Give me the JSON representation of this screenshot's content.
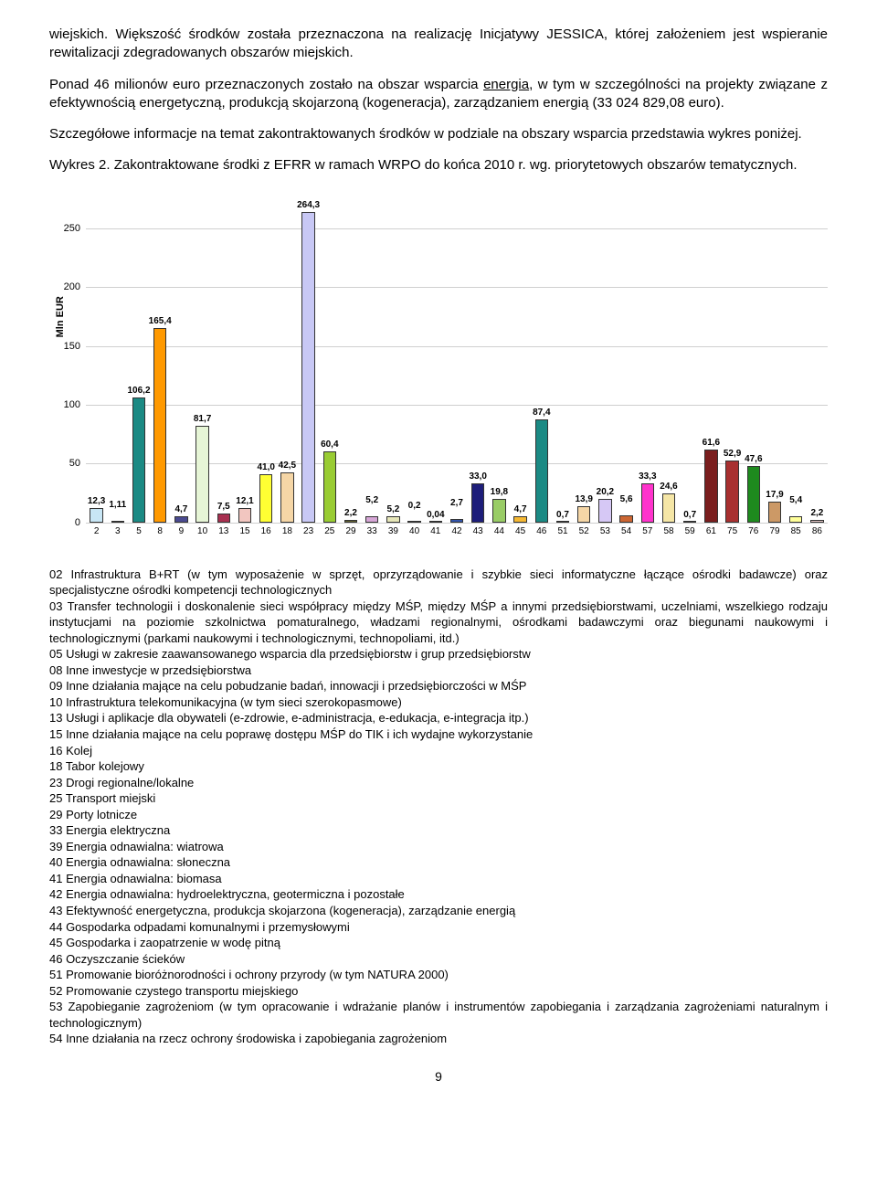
{
  "paragraphs": {
    "p1": "wiejskich. Większość środków została przeznaczona na realizację Inicjatywy JESSICA, której założeniem jest wspieranie rewitalizacji zdegradowanych obszarów miejskich.",
    "p2_a": "Ponad 46 milionów euro przeznaczonych zostało na obszar wsparcia ",
    "p2_energia": "energia",
    "p2_b": ", w tym w szczególności na projekty związane z efektywnością energetyczną, produkcją skojarzoną (kogeneracja), zarządzaniem energią (33 024 829,08 euro).",
    "p3": "Szczegółowe informacje na temat zakontraktowanych środków w podziale na obszary wsparcia przedstawia wykres poniżej.",
    "p4": "Wykres 2. Zakontraktowane środki z EFRR w ramach WRPO do końca 2010 r. wg. priorytetowych obszarów tematycznych."
  },
  "chart": {
    "type": "bar",
    "ylabel": "Mln EUR",
    "ymax": 280,
    "yticks": [
      0,
      50,
      100,
      150,
      200,
      250
    ],
    "grid_color": "#cfcfcf",
    "background_color": "#ffffff",
    "label_fontsize": 10,
    "bars": [
      {
        "cat": "2",
        "val": 12.3,
        "label": "12,3",
        "color": "#c8e6f5"
      },
      {
        "cat": "3",
        "val": 1.11,
        "label": "1,11",
        "color": "#ffffff"
      },
      {
        "cat": "5",
        "val": 106.2,
        "label": "106,2",
        "color": "#1b8a84"
      },
      {
        "cat": "8",
        "val": 165.4,
        "label": "165,4",
        "color": "#ff9900"
      },
      {
        "cat": "9",
        "val": 4.7,
        "label": "4,7",
        "color": "#4a4a90"
      },
      {
        "cat": "10",
        "val": 81.7,
        "label": "81,7",
        "color": "#e6f5d6"
      },
      {
        "cat": "13",
        "val": 7.5,
        "label": "7,5",
        "color": "#a83050"
      },
      {
        "cat": "15",
        "val": 12.1,
        "label": "12,1",
        "color": "#f2c6c0"
      },
      {
        "cat": "16",
        "val": 41.0,
        "label": "41,0",
        "color": "#ffff33"
      },
      {
        "cat": "18",
        "val": 42.5,
        "label": "42,5",
        "color": "#f5d6a6"
      },
      {
        "cat": "23",
        "val": 264.3,
        "label": "264,3",
        "color": "#c8c8f5"
      },
      {
        "cat": "25",
        "val": 60.4,
        "label": "60,4",
        "color": "#99cc33"
      },
      {
        "cat": "29",
        "val": 2.2,
        "label": "2,2",
        "color": "#666633"
      },
      {
        "cat": "33",
        "val": 5.2,
        "label": "5,2",
        "color": "#d6a6d6"
      },
      {
        "cat": "39",
        "val": 5.2,
        "label": "5,2",
        "color": "#e6e6b8"
      },
      {
        "cat": "40",
        "val": 0.2,
        "label": "0,2",
        "color": "#b8a6e6"
      },
      {
        "cat": "41",
        "val": 0.04,
        "label": "0,04",
        "color": "#ffcc99"
      },
      {
        "cat": "42",
        "val": 2.7,
        "label": "2,7",
        "color": "#3355aa"
      },
      {
        "cat": "43",
        "val": 33.0,
        "label": "33,0",
        "color": "#1e1e7a"
      },
      {
        "cat": "44",
        "val": 19.8,
        "label": "19,8",
        "color": "#99cc66"
      },
      {
        "cat": "45",
        "val": 4.7,
        "label": "4,7",
        "color": "#f5b833"
      },
      {
        "cat": "46",
        "val": 87.4,
        "label": "87,4",
        "color": "#1b8a84"
      },
      {
        "cat": "51",
        "val": 0.7,
        "label": "0,7",
        "color": "#663399"
      },
      {
        "cat": "52",
        "val": 13.9,
        "label": "13,9",
        "color": "#f5d6a6"
      },
      {
        "cat": "53",
        "val": 20.2,
        "label": "20,2",
        "color": "#d6c8f5"
      },
      {
        "cat": "54",
        "val": 5.6,
        "label": "5,6",
        "color": "#cc6633"
      },
      {
        "cat": "57",
        "val": 33.3,
        "label": "33,3",
        "color": "#ff33cc"
      },
      {
        "cat": "58",
        "val": 24.6,
        "label": "24,6",
        "color": "#f5e6a6"
      },
      {
        "cat": "59",
        "val": 0.7,
        "label": "0,7",
        "color": "#1b8a84"
      },
      {
        "cat": "61",
        "val": 61.6,
        "label": "61,6",
        "color": "#7a1e1e"
      },
      {
        "cat": "75",
        "val": 52.9,
        "label": "52,9",
        "color": "#a83030"
      },
      {
        "cat": "76",
        "val": 47.6,
        "label": "47,6",
        "color": "#1e8a1e"
      },
      {
        "cat": "79",
        "val": 17.9,
        "label": "17,9",
        "color": "#cc9966"
      },
      {
        "cat": "85",
        "val": 5.4,
        "label": "5,4",
        "color": "#ffff99"
      },
      {
        "cat": "86",
        "val": 2.2,
        "label": "2,2",
        "color": "#e6c8c8"
      }
    ]
  },
  "legend": [
    "02 Infrastruktura B+RT (w tym wyposażenie w sprzęt, oprzyrządowanie i szybkie sieci informatyczne łączące ośrodki badawcze) oraz specjalistyczne ośrodki kompetencji technologicznych",
    "03 Transfer technologii i doskonalenie sieci współpracy między MŚP, między MŚP a innymi przedsiębiorstwami, uczelniami, wszelkiego rodzaju instytucjami na poziomie szkolnictwa pomaturalnego, władzami regionalnymi, ośrodkami badawczymi oraz biegunami naukowymi i technologicznymi (parkami naukowymi i technologicznymi, technopoliami, itd.)",
    "05 Usługi w zakresie zaawansowanego wsparcia dla przedsiębiorstw i grup przedsiębiorstw",
    "08 Inne inwestycje w przedsiębiorstwa",
    "09 Inne działania mające na celu pobudzanie badań, innowacji i przedsiębiorczości w MŚP",
    "10 Infrastruktura telekomunikacyjna (w tym sieci szerokopasmowe)",
    "13 Usługi i aplikacje dla obywateli (e-zdrowie, e-administracja, e-edukacja, e-integracja itp.)",
    "15 Inne działania mające na celu poprawę dostępu MŚP do TIK i ich wydajne wykorzystanie",
    "16 Kolej",
    "18 Tabor kolejowy",
    "23 Drogi regionalne/lokalne",
    "25 Transport miejski",
    "29 Porty lotnicze",
    "33 Energia elektryczna",
    "39 Energia odnawialna: wiatrowa",
    "40 Energia odnawialna: słoneczna",
    "41 Energia odnawialna: biomasa",
    "42 Energia odnawialna: hydroelektryczna, geotermiczna i pozostałe",
    "43 Efektywność energetyczna, produkcja skojarzona (kogeneracja), zarządzanie energią",
    "44 Gospodarka odpadami komunalnymi i przemysłowymi",
    "45 Gospodarka i zaopatrzenie w wodę pitną",
    "46 Oczyszczanie ścieków",
    "51 Promowanie bioróżnorodności i ochrony przyrody (w tym NATURA 2000)",
    "52 Promowanie czystego transportu miejskiego",
    "53 Zapobieganie zagrożeniom (w tym opracowanie i wdrażanie planów i instrumentów zapobiegania i zarządzania zagrożeniami naturalnym i technologicznym)",
    "54 Inne działania na rzecz ochrony środowiska i zapobiegania zagrożeniom"
  ],
  "pagenum": "9"
}
